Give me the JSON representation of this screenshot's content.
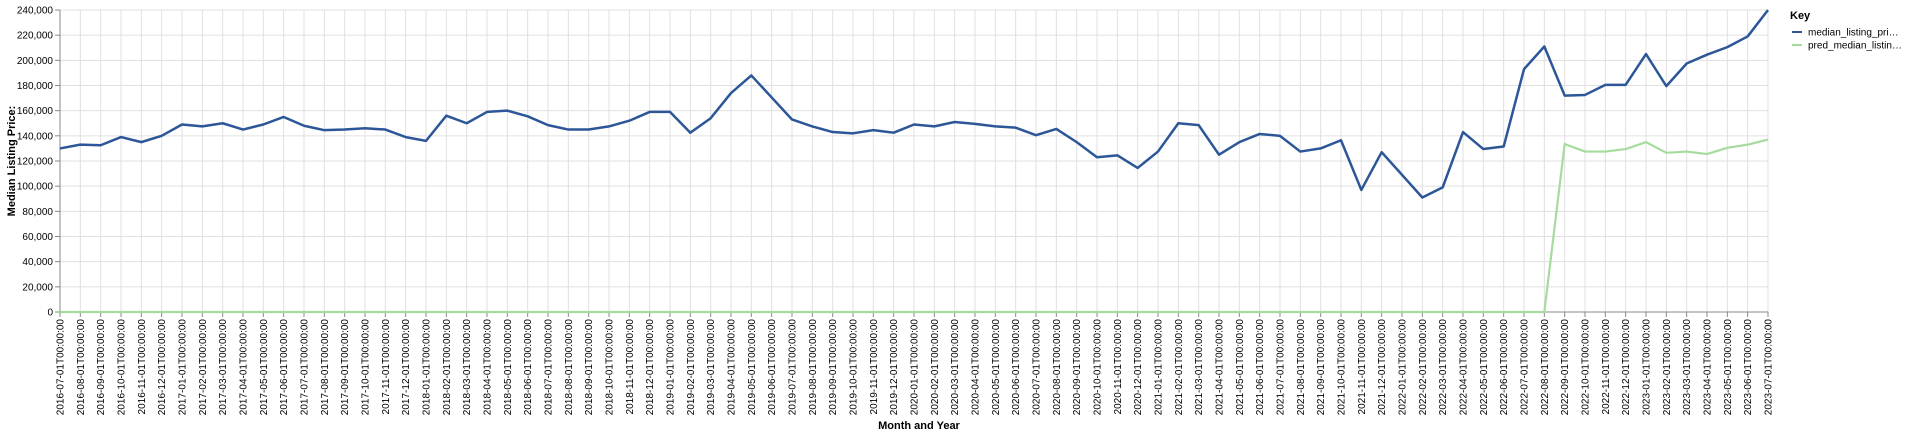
{
  "chart_data": {
    "type": "line",
    "xlabel": "Month and Year",
    "ylabel": "Median Listing Price:",
    "ylim": [
      0,
      240000
    ],
    "y_ticks": [
      "0",
      "20,000",
      "40,000",
      "60,000",
      "80,000",
      "100,000",
      "120,000",
      "140,000",
      "160,000",
      "180,000",
      "200,000",
      "220,000",
      "240,000"
    ],
    "grid": true,
    "legend": {
      "title": "Key",
      "placement": "top-right"
    },
    "x": [
      "2016-07-01T00:00:00",
      "2016-08-01T00:00:00",
      "2016-09-01T00:00:00",
      "2016-10-01T00:00:00",
      "2016-11-01T00:00:00",
      "2016-12-01T00:00:00",
      "2017-01-01T00:00:00",
      "2017-02-01T00:00:00",
      "2017-03-01T00:00:00",
      "2017-04-01T00:00:00",
      "2017-05-01T00:00:00",
      "2017-06-01T00:00:00",
      "2017-07-01T00:00:00",
      "2017-08-01T00:00:00",
      "2017-09-01T00:00:00",
      "2017-10-01T00:00:00",
      "2017-11-01T00:00:00",
      "2017-12-01T00:00:00",
      "2018-01-01T00:00:00",
      "2018-02-01T00:00:00",
      "2018-03-01T00:00:00",
      "2018-04-01T00:00:00",
      "2018-05-01T00:00:00",
      "2018-06-01T00:00:00",
      "2018-07-01T00:00:00",
      "2018-08-01T00:00:00",
      "2018-09-01T00:00:00",
      "2018-10-01T00:00:00",
      "2018-11-01T00:00:00",
      "2018-12-01T00:00:00",
      "2019-01-01T00:00:00",
      "2019-02-01T00:00:00",
      "2019-03-01T00:00:00",
      "2019-04-01T00:00:00",
      "2019-05-01T00:00:00",
      "2019-06-01T00:00:00",
      "2019-07-01T00:00:00",
      "2019-08-01T00:00:00",
      "2019-09-01T00:00:00",
      "2019-10-01T00:00:00",
      "2019-11-01T00:00:00",
      "2019-12-01T00:00:00",
      "2020-01-01T00:00:00",
      "2020-02-01T00:00:00",
      "2020-03-01T00:00:00",
      "2020-04-01T00:00:00",
      "2020-05-01T00:00:00",
      "2020-06-01T00:00:00",
      "2020-07-01T00:00:00",
      "2020-08-01T00:00:00",
      "2020-09-01T00:00:00",
      "2020-10-01T00:00:00",
      "2020-11-01T00:00:00",
      "2020-12-01T00:00:00",
      "2021-01-01T00:00:00",
      "2021-02-01T00:00:00",
      "2021-03-01T00:00:00",
      "2021-04-01T00:00:00",
      "2021-05-01T00:00:00",
      "2021-06-01T00:00:00",
      "2021-07-01T00:00:00",
      "2021-08-01T00:00:00",
      "2021-09-01T00:00:00",
      "2021-10-01T00:00:00",
      "2021-11-01T00:00:00",
      "2021-12-01T00:00:00",
      "2022-01-01T00:00:00",
      "2022-02-01T00:00:00",
      "2022-03-01T00:00:00",
      "2022-04-01T00:00:00",
      "2022-05-01T00:00:00",
      "2022-06-01T00:00:00",
      "2022-07-01T00:00:00",
      "2022-08-01T00:00:00",
      "2022-09-01T00:00:00",
      "2022-10-01T00:00:00",
      "2022-11-01T00:00:00",
      "2022-12-01T00:00:00",
      "2023-01-01T00:00:00",
      "2023-02-01T00:00:00",
      "2023-03-01T00:00:00",
      "2023-04-01T00:00:00",
      "2023-05-01T00:00:00",
      "2023-06-01T00:00:00",
      "2023-07-01T00:00:00"
    ],
    "series": [
      {
        "name": "median_listing_pri…",
        "color": "#2c5697",
        "values": [
          130000,
          133000,
          132500,
          139000,
          135000,
          140000,
          149000,
          147500,
          150000,
          145000,
          149000,
          155000,
          148000,
          144500,
          145000,
          146000,
          145000,
          139000,
          136000,
          156000,
          150000,
          159000,
          160000,
          155500,
          148500,
          145000,
          145000,
          147500,
          152000,
          159000,
          159000,
          142500,
          154000,
          174000,
          188000,
          170500,
          153000,
          147500,
          143000,
          142000,
          144500,
          142500,
          149000,
          147500,
          151000,
          149500,
          147500,
          146500,
          140500,
          145500,
          135000,
          123000,
          124500,
          114500,
          127500,
          150000,
          148500,
          125000,
          135000,
          141500,
          140000,
          127500,
          130000,
          136500,
          97000,
          127000,
          109000,
          91000,
          99000,
          143000,
          129500,
          131500,
          193000,
          211000,
          172000,
          172500,
          180500,
          180500,
          205000,
          179500,
          197500,
          204500,
          210500,
          219000,
          240000
        ]
      },
      {
        "name": "pred_median_listin…",
        "color": "#a6db9e",
        "values": [
          0,
          0,
          0,
          0,
          0,
          0,
          0,
          0,
          0,
          0,
          0,
          0,
          0,
          0,
          0,
          0,
          0,
          0,
          0,
          0,
          0,
          0,
          0,
          0,
          0,
          0,
          0,
          0,
          0,
          0,
          0,
          0,
          0,
          0,
          0,
          0,
          0,
          0,
          0,
          0,
          0,
          0,
          0,
          0,
          0,
          0,
          0,
          0,
          0,
          0,
          0,
          0,
          0,
          0,
          0,
          0,
          0,
          0,
          0,
          0,
          0,
          0,
          0,
          0,
          0,
          0,
          0,
          0,
          0,
          0,
          0,
          0,
          0,
          0,
          133500,
          127500,
          127500,
          129500,
          135000,
          126500,
          127500,
          125500,
          130500,
          133000,
          137000
        ]
      }
    ]
  }
}
